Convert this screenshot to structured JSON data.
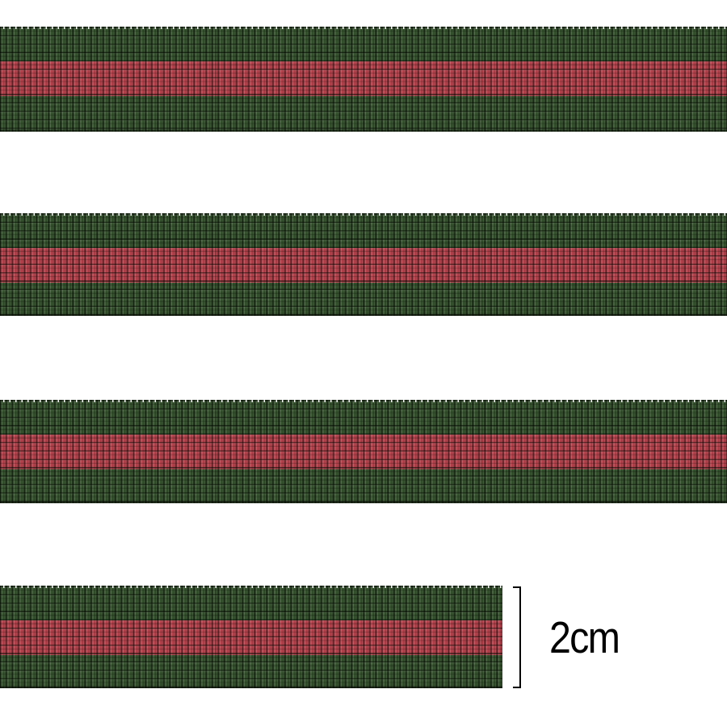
{
  "image": {
    "subject": "striped grosgrain ribbon webbing strips",
    "strip_count": 4,
    "stripe_pattern": [
      "green",
      "red",
      "green"
    ]
  },
  "measurement": {
    "label": "2cm"
  },
  "colors": {
    "ribbon_green": "#2d4b25",
    "ribbon_red": "#b23a45",
    "background": "#ffffff",
    "annotation": "#000000"
  }
}
